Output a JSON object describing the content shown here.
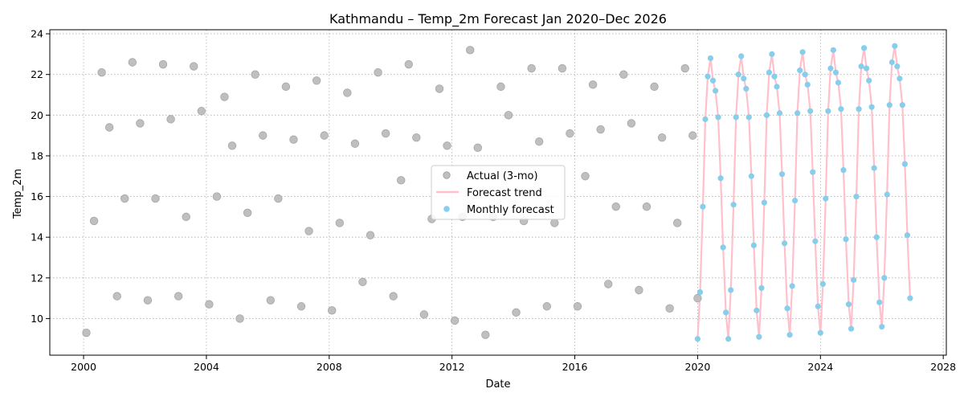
{
  "chart_data": {
    "type": "scatter",
    "title": "Kathmandu – Temp_2m Forecast Jan 2020–Dec 2026",
    "xlabel": "Date",
    "ylabel": "Temp_2m",
    "xlim": [
      1998.9,
      2028.1
    ],
    "ylim": [
      8.2,
      24.2
    ],
    "x_ticks": [
      2000,
      2004,
      2008,
      2012,
      2016,
      2020,
      2024,
      2028
    ],
    "y_ticks": [
      10,
      12,
      14,
      16,
      18,
      20,
      22,
      24
    ],
    "grid": true,
    "legend_position": "center",
    "colors": {
      "actual": "#bfbfbf",
      "actual_edge": "#a6a6a6",
      "trend": "#ffc0cb",
      "monthly": "#87ceeb"
    },
    "series": [
      {
        "name": "Actual (3-mo)",
        "kind": "scatter",
        "points": [
          [
            2000.09,
            9.3
          ],
          [
            2000.34,
            14.8
          ],
          [
            2000.59,
            22.1
          ],
          [
            2000.84,
            19.4
          ],
          [
            2001.09,
            11.1
          ],
          [
            2001.34,
            15.9
          ],
          [
            2001.59,
            22.6
          ],
          [
            2001.84,
            19.6
          ],
          [
            2002.09,
            10.9
          ],
          [
            2002.34,
            15.9
          ],
          [
            2002.59,
            22.5
          ],
          [
            2002.84,
            19.8
          ],
          [
            2003.09,
            11.1
          ],
          [
            2003.34,
            15.0
          ],
          [
            2003.59,
            22.4
          ],
          [
            2003.84,
            20.2
          ],
          [
            2004.09,
            10.7
          ],
          [
            2004.34,
            16.0
          ],
          [
            2004.59,
            20.9
          ],
          [
            2004.84,
            18.5
          ],
          [
            2005.09,
            10.0
          ],
          [
            2005.34,
            15.2
          ],
          [
            2005.59,
            22.0
          ],
          [
            2005.84,
            19.0
          ],
          [
            2006.09,
            10.9
          ],
          [
            2006.34,
            15.9
          ],
          [
            2006.59,
            21.4
          ],
          [
            2006.84,
            18.8
          ],
          [
            2007.09,
            10.6
          ],
          [
            2007.34,
            14.3
          ],
          [
            2007.59,
            21.7
          ],
          [
            2007.84,
            19.0
          ],
          [
            2008.09,
            10.4
          ],
          [
            2008.34,
            14.7
          ],
          [
            2008.59,
            21.1
          ],
          [
            2008.84,
            18.6
          ],
          [
            2009.09,
            11.8
          ],
          [
            2009.34,
            14.1
          ],
          [
            2009.59,
            22.1
          ],
          [
            2009.84,
            19.1
          ],
          [
            2010.09,
            11.1
          ],
          [
            2010.34,
            16.8
          ],
          [
            2010.59,
            22.5
          ],
          [
            2010.84,
            18.9
          ],
          [
            2011.09,
            10.2
          ],
          [
            2011.34,
            14.9
          ],
          [
            2011.59,
            21.3
          ],
          [
            2011.84,
            18.5
          ],
          [
            2012.09,
            9.9
          ],
          [
            2012.34,
            15.0
          ],
          [
            2012.59,
            23.2
          ],
          [
            2012.84,
            18.4
          ],
          [
            2013.09,
            9.2
          ],
          [
            2013.34,
            15.0
          ],
          [
            2013.59,
            21.4
          ],
          [
            2013.84,
            20.0
          ],
          [
            2014.09,
            10.3
          ],
          [
            2014.34,
            14.8
          ],
          [
            2014.59,
            22.3
          ],
          [
            2014.84,
            18.7
          ],
          [
            2015.09,
            10.6
          ],
          [
            2015.34,
            14.7
          ],
          [
            2015.59,
            22.3
          ],
          [
            2015.84,
            19.1
          ],
          [
            2016.09,
            10.6
          ],
          [
            2016.34,
            17.0
          ],
          [
            2016.59,
            21.5
          ],
          [
            2016.84,
            19.3
          ],
          [
            2017.09,
            11.7
          ],
          [
            2017.34,
            15.5
          ],
          [
            2017.59,
            22.0
          ],
          [
            2017.84,
            19.6
          ],
          [
            2018.09,
            11.4
          ],
          [
            2018.34,
            15.5
          ],
          [
            2018.59,
            21.4
          ],
          [
            2018.84,
            18.9
          ],
          [
            2019.09,
            10.5
          ],
          [
            2019.34,
            14.7
          ],
          [
            2019.59,
            22.3
          ],
          [
            2019.84,
            19.0
          ],
          [
            2020.0,
            11.0
          ]
        ]
      },
      {
        "name": "Forecast trend",
        "kind": "line",
        "points": [
          [
            2020.0,
            9.0
          ],
          [
            2020.08,
            11.3
          ],
          [
            2020.17,
            15.5
          ],
          [
            2020.25,
            19.8
          ],
          [
            2020.33,
            21.9
          ],
          [
            2020.42,
            22.8
          ],
          [
            2020.5,
            21.7
          ],
          [
            2020.58,
            21.2
          ],
          [
            2020.67,
            19.9
          ],
          [
            2020.75,
            16.9
          ],
          [
            2020.83,
            13.5
          ],
          [
            2020.92,
            10.3
          ],
          [
            2021.0,
            9.0
          ],
          [
            2021.08,
            11.4
          ],
          [
            2021.17,
            15.6
          ],
          [
            2021.25,
            19.9
          ],
          [
            2021.33,
            22.0
          ],
          [
            2021.42,
            22.9
          ],
          [
            2021.5,
            21.8
          ],
          [
            2021.58,
            21.3
          ],
          [
            2021.67,
            19.9
          ],
          [
            2021.75,
            17.0
          ],
          [
            2021.83,
            13.6
          ],
          [
            2021.92,
            10.4
          ],
          [
            2022.0,
            9.1
          ],
          [
            2022.08,
            11.5
          ],
          [
            2022.17,
            15.7
          ],
          [
            2022.25,
            20.0
          ],
          [
            2022.33,
            22.1
          ],
          [
            2022.42,
            23.0
          ],
          [
            2022.5,
            21.9
          ],
          [
            2022.58,
            21.4
          ],
          [
            2022.67,
            20.1
          ],
          [
            2022.75,
            17.1
          ],
          [
            2022.83,
            13.7
          ],
          [
            2022.92,
            10.5
          ],
          [
            2023.0,
            9.2
          ],
          [
            2023.08,
            11.6
          ],
          [
            2023.17,
            15.8
          ],
          [
            2023.25,
            20.1
          ],
          [
            2023.33,
            22.2
          ],
          [
            2023.42,
            23.1
          ],
          [
            2023.5,
            22.0
          ],
          [
            2023.58,
            21.5
          ],
          [
            2023.67,
            20.2
          ],
          [
            2023.75,
            17.2
          ],
          [
            2023.83,
            13.8
          ],
          [
            2023.92,
            10.6
          ],
          [
            2024.0,
            9.3
          ],
          [
            2024.08,
            11.7
          ],
          [
            2024.17,
            15.9
          ],
          [
            2024.25,
            20.2
          ],
          [
            2024.33,
            22.3
          ],
          [
            2024.42,
            23.2
          ],
          [
            2024.5,
            22.1
          ],
          [
            2024.58,
            21.6
          ],
          [
            2024.67,
            20.3
          ],
          [
            2024.75,
            17.3
          ],
          [
            2024.83,
            13.9
          ],
          [
            2024.92,
            10.7
          ],
          [
            2025.0,
            9.5
          ],
          [
            2025.08,
            11.9
          ],
          [
            2025.17,
            16.0
          ],
          [
            2025.25,
            20.3
          ],
          [
            2025.33,
            22.4
          ],
          [
            2025.42,
            23.3
          ],
          [
            2025.5,
            22.3
          ],
          [
            2025.58,
            21.7
          ],
          [
            2025.67,
            20.4
          ],
          [
            2025.75,
            17.4
          ],
          [
            2025.83,
            14.0
          ],
          [
            2025.92,
            10.8
          ],
          [
            2026.0,
            9.6
          ],
          [
            2026.08,
            12.0
          ],
          [
            2026.17,
            16.1
          ],
          [
            2026.25,
            20.5
          ],
          [
            2026.33,
            22.6
          ],
          [
            2026.42,
            23.4
          ],
          [
            2026.5,
            22.4
          ],
          [
            2026.58,
            21.8
          ],
          [
            2026.67,
            20.5
          ],
          [
            2026.75,
            17.6
          ],
          [
            2026.83,
            14.1
          ],
          [
            2026.92,
            11.0
          ]
        ]
      },
      {
        "name": "Monthly forecast",
        "kind": "scatter",
        "points_from": "Forecast trend"
      }
    ]
  }
}
